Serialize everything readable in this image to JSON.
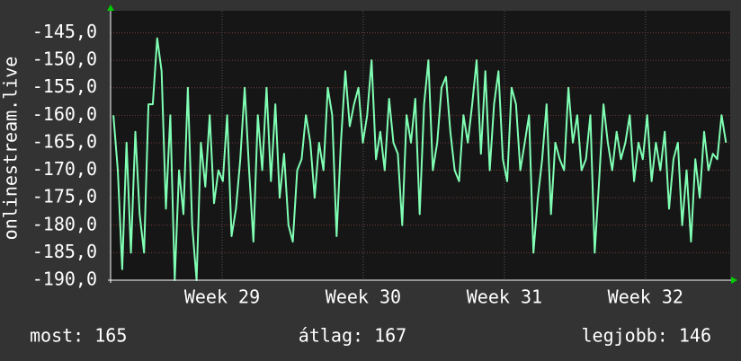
{
  "chart_data": {
    "type": "line",
    "y_label": "onlinestream.live",
    "x": [
      28.23,
      28.261,
      28.292,
      28.323,
      28.354,
      28.385,
      28.416,
      28.447,
      28.478,
      28.509,
      28.54,
      28.571,
      28.602,
      28.633,
      28.664,
      28.695,
      28.726,
      28.757,
      28.788,
      28.819,
      28.85,
      28.881,
      28.912,
      28.943,
      28.974,
      29.005,
      29.036,
      29.067,
      29.098,
      29.129,
      29.16,
      29.191,
      29.222,
      29.253,
      29.284,
      29.315,
      29.346,
      29.377,
      29.408,
      29.439,
      29.47,
      29.501,
      29.532,
      29.563,
      29.594,
      29.625,
      29.656,
      29.687,
      29.718,
      29.749,
      29.78,
      29.811,
      29.842,
      29.873,
      29.904,
      29.935,
      29.966,
      29.997,
      30.028,
      30.059,
      30.09,
      30.121,
      30.152,
      30.183,
      30.214,
      30.245,
      30.276,
      30.307,
      30.338,
      30.369,
      30.4,
      30.431,
      30.462,
      30.493,
      30.524,
      30.555,
      30.586,
      30.617,
      30.648,
      30.679,
      30.71,
      30.741,
      30.772,
      30.803,
      30.834,
      30.865,
      30.896,
      30.927,
      30.958,
      30.989,
      31.02,
      31.051,
      31.082,
      31.113,
      31.144,
      31.175,
      31.206,
      31.237,
      31.268,
      31.299,
      31.33,
      31.361,
      31.392,
      31.423,
      31.454,
      31.485,
      31.516,
      31.547,
      31.578,
      31.609,
      31.64,
      31.671,
      31.702,
      31.733,
      31.764,
      31.795,
      31.826,
      31.857,
      31.888,
      31.919,
      31.95,
      31.981,
      32.012,
      32.043,
      32.074,
      32.105,
      32.136,
      32.167,
      32.198,
      32.229,
      32.26,
      32.291,
      32.322,
      32.353,
      32.384,
      32.415,
      32.446,
      32.477,
      32.508,
      32.539,
      32.57
    ],
    "series": [
      {
        "color": "#80ffb4",
        "values": [
          -160,
          -170,
          -188,
          -165,
          -185,
          -163,
          -178,
          -185,
          -158,
          -158,
          -146,
          -152,
          -177,
          -160,
          -190,
          -170,
          -178,
          -155,
          -180,
          -190,
          -165,
          -173,
          -160,
          -176,
          -170,
          -172,
          -160,
          -182,
          -177,
          -168,
          -155,
          -170,
          -183,
          -160,
          -170,
          -155,
          -172,
          -158,
          -175,
          -167,
          -180,
          -183,
          -170,
          -168,
          -160,
          -165,
          -175,
          -165,
          -170,
          -155,
          -160,
          -182,
          -165,
          -152,
          -162,
          -158,
          -155,
          -165,
          -160,
          -150,
          -168,
          -163,
          -170,
          -157,
          -165,
          -167,
          -180,
          -160,
          -165,
          -157,
          -178,
          -158,
          -150,
          -170,
          -165,
          -155,
          -153,
          -163,
          -170,
          -172,
          -160,
          -165,
          -158,
          -150,
          -167,
          -152,
          -170,
          -158,
          -152,
          -168,
          -172,
          -155,
          -158,
          -170,
          -165,
          -160,
          -185,
          -175,
          -168,
          -158,
          -178,
          -165,
          -168,
          -170,
          -155,
          -165,
          -160,
          -170,
          -168,
          -160,
          -185,
          -172,
          -158,
          -165,
          -170,
          -163,
          -168,
          -165,
          -160,
          -172,
          -165,
          -168,
          -160,
          -172,
          -165,
          -170,
          -163,
          -177,
          -168,
          -165,
          -180,
          -170,
          -183,
          -168,
          -175,
          -163,
          -170,
          -167,
          -168,
          -160,
          -165
        ]
      }
    ],
    "xlim": [
      28.21,
      32.6
    ],
    "xticks": [
      {
        "value": 29,
        "label": "Week 29"
      },
      {
        "value": 30,
        "label": "Week 30"
      },
      {
        "value": 31,
        "label": "Week 31"
      },
      {
        "value": 32,
        "label": "Week 32"
      }
    ],
    "ylim": [
      -190,
      -141
    ],
    "yticks": [
      {
        "value": -190,
        "label": "-190,0"
      },
      {
        "value": -185,
        "label": "-185,0"
      },
      {
        "value": -180,
        "label": "-180,0"
      },
      {
        "value": -175,
        "label": "-175,0"
      },
      {
        "value": -170,
        "label": "-170,0"
      },
      {
        "value": -165,
        "label": "-165,0"
      },
      {
        "value": -160,
        "label": "-160,0"
      },
      {
        "value": -155,
        "label": "-155,0"
      },
      {
        "value": -150,
        "label": "-150,0"
      },
      {
        "value": -145,
        "label": "-145,0"
      }
    ],
    "grid": true,
    "footer": [
      "most: 165",
      "átlag: 167",
      "legjobb: 146"
    ]
  }
}
